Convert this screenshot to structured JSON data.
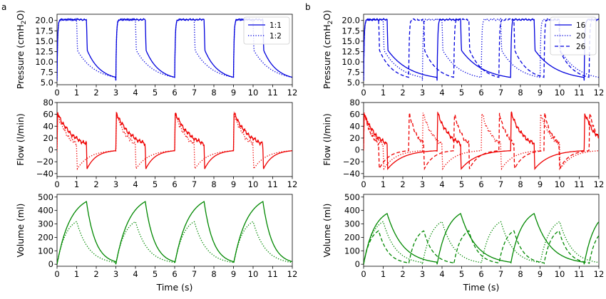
{
  "panel_labels": [
    "a",
    "b"
  ],
  "chart_data": [
    {
      "type": "line",
      "panel": "a",
      "row": 0,
      "ylabel": "Pressure (cmH2O)",
      "xlim": [
        0,
        12
      ],
      "ylim": [
        4.5,
        21.5
      ],
      "yticks": [
        5.0,
        7.5,
        10.0,
        12.5,
        15.0,
        17.5,
        20.0
      ],
      "yticks_text": [
        "5.0",
        "7.5",
        "10.0",
        "12.5",
        "15.0",
        "17.5",
        "20.0"
      ],
      "xticks": [
        0,
        1,
        2,
        3,
        4,
        5,
        6,
        7,
        8,
        9,
        10,
        11,
        12
      ],
      "legend": "top-right",
      "color": "#0000dd",
      "series": [
        {
          "name": "1:1",
          "dash": "solid",
          "kind": "pressure",
          "period": 3,
          "ti": 1.5
        },
        {
          "name": "1:2",
          "dash": "dotted",
          "kind": "pressure",
          "period": 3,
          "ti": 1.0
        }
      ]
    },
    {
      "type": "line",
      "panel": "b",
      "row": 0,
      "ylabel": "Pressure (cmH2O)",
      "xlim": [
        0,
        12
      ],
      "ylim": [
        4.5,
        21.5
      ],
      "yticks": [
        5.0,
        7.5,
        10.0,
        12.5,
        15.0,
        17.5,
        20.0
      ],
      "yticks_text": [
        "5.0",
        "7.5",
        "10.0",
        "12.5",
        "15.0",
        "17.5",
        "20.0"
      ],
      "xticks": [
        0,
        1,
        2,
        3,
        4,
        5,
        6,
        7,
        8,
        9,
        10,
        11,
        12
      ],
      "legend": "top-right",
      "color": "#0000dd",
      "series": [
        {
          "name": "16",
          "dash": "solid",
          "kind": "pressure",
          "period": 3.75,
          "ti": 1.2
        },
        {
          "name": "20",
          "dash": "dotted",
          "kind": "pressure",
          "period": 3.0,
          "ti": 1.0
        },
        {
          "name": "26",
          "dash": "dashed",
          "kind": "pressure",
          "period": 2.3,
          "ti": 0.77
        }
      ]
    },
    {
      "type": "line",
      "panel": "a",
      "row": 1,
      "ylabel": "Flow (l/min)",
      "xlim": [
        0,
        12
      ],
      "ylim": [
        -45,
        80
      ],
      "yticks": [
        -40,
        -20,
        0,
        20,
        40,
        60,
        80
      ],
      "yticks_text": [
        "−40",
        "−20",
        "0",
        "20",
        "40",
        "60",
        "80"
      ],
      "xticks": [
        0,
        1,
        2,
        3,
        4,
        5,
        6,
        7,
        8,
        9,
        10,
        11,
        12
      ],
      "color": "#ee0000",
      "series": [
        {
          "dash": "solid",
          "kind": "flow",
          "period": 3,
          "ti": 1.5
        },
        {
          "dash": "dotted",
          "kind": "flow",
          "period": 3,
          "ti": 1.0
        }
      ]
    },
    {
      "type": "line",
      "panel": "b",
      "row": 1,
      "ylabel": "Flow (l/min)",
      "xlim": [
        0,
        12
      ],
      "ylim": [
        -45,
        80
      ],
      "yticks": [
        -40,
        -20,
        0,
        20,
        40,
        60,
        80
      ],
      "yticks_text": [
        "−40",
        "−20",
        "0",
        "20",
        "40",
        "60",
        "80"
      ],
      "xticks": [
        0,
        1,
        2,
        3,
        4,
        5,
        6,
        7,
        8,
        9,
        10,
        11,
        12
      ],
      "color": "#ee0000",
      "series": [
        {
          "dash": "solid",
          "kind": "flow",
          "period": 3.75,
          "ti": 1.2
        },
        {
          "dash": "dotted",
          "kind": "flow",
          "period": 3.0,
          "ti": 1.0
        },
        {
          "dash": "dashed",
          "kind": "flow",
          "period": 2.3,
          "ti": 0.77
        }
      ]
    },
    {
      "type": "line",
      "panel": "a",
      "row": 2,
      "ylabel": "Volume (ml)",
      "xlim": [
        0,
        12
      ],
      "ylim": [
        -15,
        520
      ],
      "yticks": [
        0,
        100,
        200,
        300,
        400,
        500
      ],
      "yticks_text": [
        "0",
        "100",
        "200",
        "300",
        "400",
        "500"
      ],
      "xticks": [
        0,
        1,
        2,
        3,
        4,
        5,
        6,
        7,
        8,
        9,
        10,
        11,
        12
      ],
      "xlabel": "Time (s)",
      "color": "#008800",
      "series": [
        {
          "dash": "solid",
          "kind": "volume",
          "period": 3,
          "ti": 1.5
        },
        {
          "dash": "dotted",
          "kind": "volume",
          "period": 3,
          "ti": 1.0
        }
      ]
    },
    {
      "type": "line",
      "panel": "b",
      "row": 2,
      "ylabel": "Volume (ml)",
      "xlim": [
        0,
        12
      ],
      "ylim": [
        -15,
        520
      ],
      "yticks": [
        0,
        100,
        200,
        300,
        400,
        500
      ],
      "yticks_text": [
        "0",
        "100",
        "200",
        "300",
        "400",
        "500"
      ],
      "xticks": [
        0,
        1,
        2,
        3,
        4,
        5,
        6,
        7,
        8,
        9,
        10,
        11,
        12
      ],
      "xlabel": "Time (s)",
      "color": "#008800",
      "series": [
        {
          "dash": "solid",
          "kind": "volume",
          "period": 3.75,
          "ti": 1.2
        },
        {
          "dash": "dotted",
          "kind": "volume",
          "period": 3.0,
          "ti": 1.0
        },
        {
          "dash": "dashed",
          "kind": "volume",
          "period": 2.3,
          "ti": 0.77
        }
      ]
    }
  ]
}
